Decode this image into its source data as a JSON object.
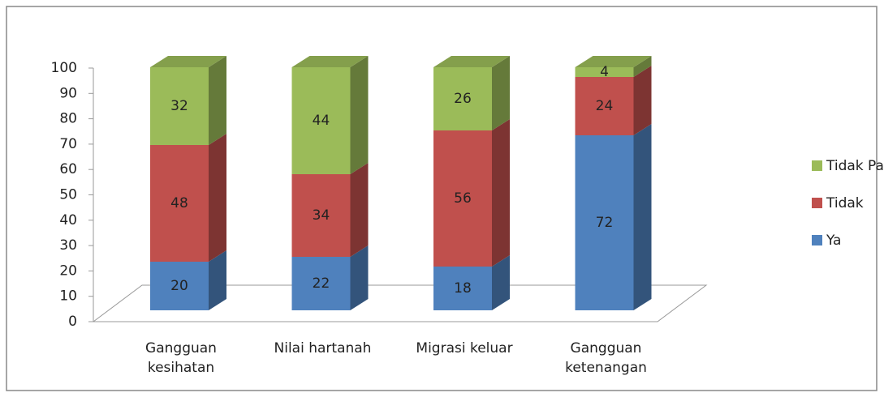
{
  "chart_data": {
    "type": "bar",
    "stacked": true,
    "three_d": true,
    "categories": [
      "Gangguan kesihatan",
      "Nilai hartanah",
      "Migrasi keluar",
      "Gangguan ketenangan"
    ],
    "series": [
      {
        "name": "Ya",
        "color": "#4f81bd",
        "values": [
          20,
          22,
          18,
          72
        ]
      },
      {
        "name": "Tidak",
        "color": "#c0504d",
        "values": [
          48,
          34,
          56,
          24
        ]
      },
      {
        "name": "Tidak Pasti",
        "color": "#9bbb59",
        "values": [
          32,
          44,
          26,
          4
        ]
      }
    ],
    "ylim": [
      0,
      100
    ],
    "yticks": [
      0,
      10,
      20,
      30,
      40,
      50,
      60,
      70,
      80,
      90,
      100
    ],
    "legend": "right"
  }
}
